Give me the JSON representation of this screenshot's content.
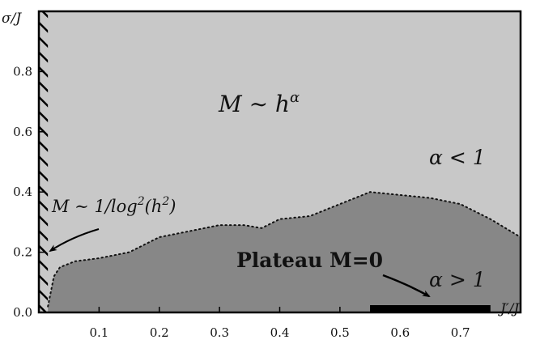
{
  "chart_data": {
    "type": "area",
    "xlabel": "J′/J",
    "ylabel": "σ/J",
    "xlim": [
      0,
      0.8
    ],
    "ylim": [
      0,
      1.0
    ],
    "x_ticks": [
      "0.1",
      "0.2",
      "0.3",
      "0.4",
      "0.5",
      "0.6",
      "0.7"
    ],
    "x_tick_values": [
      0.1,
      0.2,
      0.3,
      0.4,
      0.5,
      0.6,
      0.7
    ],
    "y_ticks": [
      "0.0",
      "0.2",
      "0.4",
      "0.6",
      "0.8"
    ],
    "y_tick_values": [
      0.0,
      0.2,
      0.4,
      0.6,
      0.8
    ],
    "grid": false,
    "hatched_region": {
      "x_range": [
        0.0,
        0.015
      ]
    },
    "boundary": {
      "x": [
        0.015,
        0.025,
        0.035,
        0.06,
        0.1,
        0.15,
        0.2,
        0.25,
        0.3,
        0.34,
        0.37,
        0.4,
        0.45,
        0.5,
        0.55,
        0.6,
        0.65,
        0.7,
        0.75,
        0.8
      ],
      "y": [
        0.02,
        0.12,
        0.15,
        0.17,
        0.18,
        0.2,
        0.25,
        0.27,
        0.29,
        0.29,
        0.28,
        0.31,
        0.32,
        0.36,
        0.4,
        0.39,
        0.38,
        0.36,
        0.31,
        0.25
      ]
    },
    "plateau_segment": {
      "x_range": [
        0.55,
        0.75
      ],
      "y": 0.0
    },
    "colors": {
      "upper_region": "#c8c8c8",
      "lower_region": "#878787",
      "plateau": "#000000",
      "frame": "#000000"
    },
    "annotations": {
      "upper_law": "M ∼ h",
      "upper_law_exp": "α",
      "upper_condition": "α < 1",
      "log_law_prefix": "M ∼ 1/log",
      "log_law_exp": "2",
      "log_law_suffix": "(h",
      "log_law_exp2": "2",
      "log_law_close": ")",
      "plateau": "Plateau M=0",
      "lower_condition": "α > 1"
    }
  }
}
